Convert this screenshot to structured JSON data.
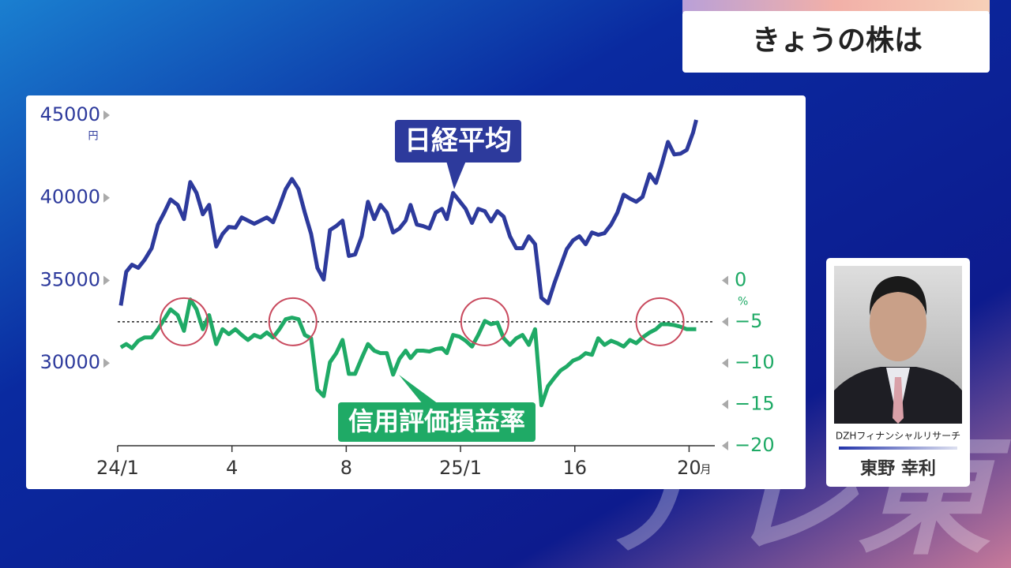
{
  "header": {
    "title": "きょうの株は"
  },
  "caption": {
    "company": "DZHフィナンシャルリサーチ",
    "name": "東野 幸利"
  },
  "watermark": "テレ東",
  "chart_data": {
    "type": "line",
    "x": [
      0.11,
      0.3,
      0.5,
      0.72,
      0.94,
      1.19,
      1.41,
      1.63,
      1.85,
      2.1,
      2.32,
      2.54,
      2.76,
      2.98,
      3.2,
      3.45,
      3.67,
      3.89,
      4.12,
      4.34,
      4.56,
      4.78,
      5.0,
      5.22,
      5.44,
      5.66,
      5.88,
      6.1,
      6.33,
      6.55,
      6.77,
      6.99,
      7.21,
      7.43,
      7.65,
      7.87,
      8.09,
      8.31,
      8.54,
      8.76,
      8.98,
      9.2,
      9.42,
      9.64,
      9.86,
      10.08,
      10.25,
      10.47,
      10.69,
      10.91,
      11.13,
      11.35,
      11.52,
      11.74,
      11.96,
      12.18,
      12.4,
      12.62,
      12.85,
      13.07,
      13.29,
      13.51,
      13.73,
      13.95,
      14.17,
      14.39,
      14.61,
      14.83,
      15.06,
      15.28,
      15.5,
      15.72,
      15.94,
      16.16,
      16.38,
      16.6,
      16.82,
      17.04,
      17.27,
      17.49,
      17.71,
      17.93,
      18.15,
      18.37,
      18.62,
      18.84,
      19.03,
      19.26,
      19.48,
      19.7,
      19.92,
      20.14,
      20.25
    ],
    "series": [
      {
        "name": "日経平均",
        "color": "#2d3a9c",
        "axis": "y",
        "values": [
          33480,
          35520,
          35950,
          35760,
          36240,
          36950,
          38380,
          39100,
          39900,
          39570,
          38710,
          40950,
          40290,
          39000,
          39570,
          37050,
          37810,
          38240,
          38190,
          38810,
          38620,
          38430,
          38620,
          38810,
          38520,
          39480,
          40520,
          41140,
          40520,
          39100,
          37810,
          35760,
          35050,
          38050,
          38290,
          38620,
          36480,
          36570,
          37670,
          39760,
          38710,
          39570,
          39100,
          37900,
          38140,
          38620,
          39570,
          38380,
          38290,
          38140,
          39100,
          39330,
          38710,
          40290,
          39810,
          39330,
          38480,
          39330,
          39190,
          38570,
          39190,
          38860,
          37670,
          36950,
          36950,
          37670,
          37190,
          33950,
          33620,
          34810,
          35860,
          36900,
          37430,
          37670,
          37190,
          37900,
          37760,
          37860,
          38380,
          39100,
          40190,
          39950,
          39760,
          40050,
          41430,
          40900,
          41950,
          43380,
          42620,
          42670,
          42900,
          43950,
          44710
        ]
      },
      {
        "name": "信用評価損益率",
        "color": "#1faa66",
        "axis": "y2",
        "values": [
          -8.1,
          -7.7,
          -8.2,
          -7.3,
          -6.9,
          -6.9,
          -5.9,
          -4.7,
          -3.5,
          -4.2,
          -6.1,
          -2.3,
          -3.5,
          -5.9,
          -4.2,
          -7.7,
          -5.9,
          -6.5,
          -5.9,
          -6.6,
          -7.2,
          -6.6,
          -6.9,
          -6.3,
          -6.9,
          -5.9,
          -4.7,
          -4.5,
          -4.7,
          -6.6,
          -7.0,
          -13.2,
          -14.0,
          -9.9,
          -8.8,
          -7.2,
          -11.3,
          -11.3,
          -9.4,
          -7.7,
          -8.5,
          -8.8,
          -8.8,
          -11.4,
          -9.5,
          -8.5,
          -9.4,
          -8.5,
          -8.5,
          -8.6,
          -8.3,
          -8.2,
          -8.8,
          -6.6,
          -6.8,
          -7.3,
          -8.0,
          -6.6,
          -4.9,
          -5.3,
          -5.1,
          -7.0,
          -7.8,
          -7.0,
          -6.6,
          -7.8,
          -5.9,
          -15.1,
          -12.8,
          -11.8,
          -10.9,
          -10.4,
          -9.7,
          -9.4,
          -8.8,
          -9.0,
          -7.0,
          -7.8,
          -7.3,
          -7.6,
          -8.0,
          -7.2,
          -7.6,
          -6.9,
          -6.3,
          -5.9,
          -5.3,
          -5.3,
          -5.4,
          -5.6,
          -5.9,
          -5.9,
          -5.9
        ]
      }
    ],
    "xlim": [
      0,
      20.9
    ],
    "xticks": [
      {
        "value": 0,
        "label": "24/1"
      },
      4,
      8,
      {
        "value": 12,
        "label": "25/1"
      },
      16,
      20
    ],
    "x_unit": "月",
    "ylim": [
      25000,
      46000
    ],
    "yticks": [
      30000,
      35000,
      40000,
      45000
    ],
    "y_unit": "円",
    "y2lim": [
      -20,
      22
    ],
    "y2ticks": [
      0,
      {
        "value": -5,
        "label": "−5"
      },
      {
        "value": -10,
        "label": "−10"
      },
      {
        "value": -15,
        "label": "−15"
      },
      {
        "value": -20,
        "label": "−20"
      }
    ],
    "y2_unit": "%",
    "ref_line_y2": -5,
    "highlight_x": [
      2.32,
      6.13,
      12.85,
      18.98
    ]
  }
}
